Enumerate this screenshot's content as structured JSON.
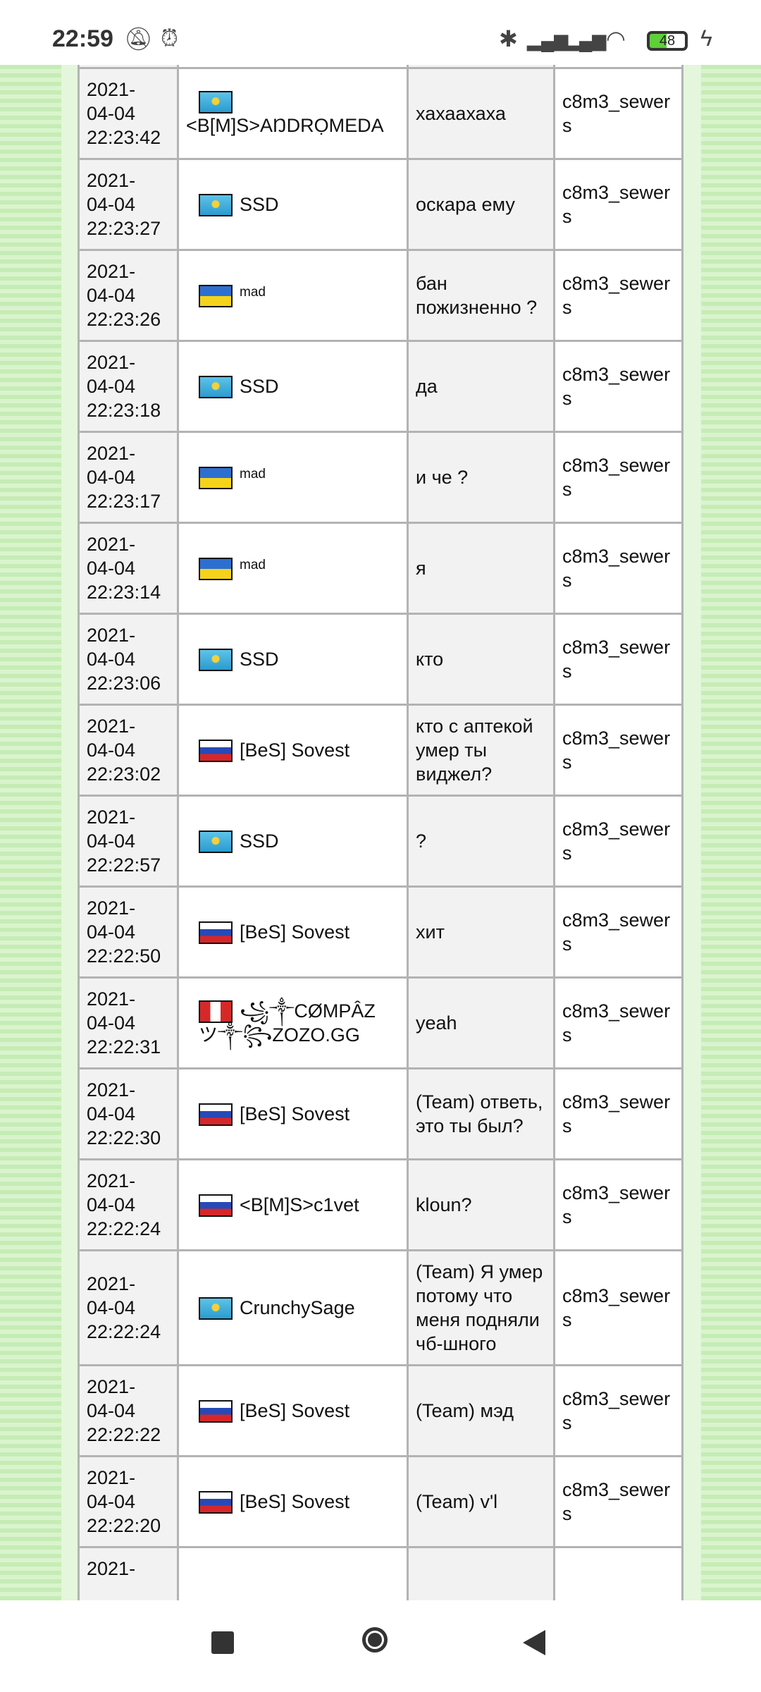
{
  "status_bar": {
    "time": "22:59",
    "battery": "48",
    "icons": [
      "bell-off-icon",
      "alarm-icon",
      "bluetooth-icon",
      "signal-icon",
      "signal-icon",
      "wifi-icon",
      "battery-icon",
      "charging-icon"
    ]
  },
  "colors": {
    "background_green": "#c6ecb5",
    "cell_gray": "#f2f2f2",
    "border": "#b3b3b3"
  },
  "rows": [
    {
      "date": "2021-",
      "day": "04-04",
      "time": "22:23:42",
      "flag": "kz",
      "name": "<B[M]S>AŊDRỌMEDA",
      "small": false,
      "message": "хахаахаха",
      "map": "c8m3_sewers",
      "wrap": true
    },
    {
      "date": "2021-",
      "day": "04-04",
      "time": "22:23:27",
      "flag": "kz",
      "name": "SSD",
      "small": false,
      "message": "оскара ему",
      "map": "c8m3_sewers"
    },
    {
      "date": "2021-",
      "day": "04-04",
      "time": "22:23:26",
      "flag": "ua",
      "name": "mad",
      "small": true,
      "message": "бан пожизненно ?",
      "map": "c8m3_sewers"
    },
    {
      "date": "2021-",
      "day": "04-04",
      "time": "22:23:18",
      "flag": "kz",
      "name": "SSD",
      "small": false,
      "message": "да",
      "map": "c8m3_sewers"
    },
    {
      "date": "2021-",
      "day": "04-04",
      "time": "22:23:17",
      "flag": "ua",
      "name": "mad",
      "small": true,
      "message": "и че ?",
      "map": "c8m3_sewers"
    },
    {
      "date": "2021-",
      "day": "04-04",
      "time": "22:23:14",
      "flag": "ua",
      "name": "mad",
      "small": true,
      "message": "я",
      "map": "c8m3_sewers"
    },
    {
      "date": "2021-",
      "day": "04-04",
      "time": "22:23:06",
      "flag": "kz",
      "name": "SSD",
      "small": false,
      "message": "кто",
      "map": "c8m3_sewers"
    },
    {
      "date": "2021-",
      "day": "04-04",
      "time": "22:23:02",
      "flag": "ru",
      "name": "[BeS] Sovest",
      "small": false,
      "message": "кто с аптекой умер ты виджел?",
      "map": "c8m3_sewers"
    },
    {
      "date": "2021-",
      "day": "04-04",
      "time": "22:22:57",
      "flag": "kz",
      "name": "SSD",
      "small": false,
      "message": "?",
      "map": "c8m3_sewers"
    },
    {
      "date": "2021-",
      "day": "04-04",
      "time": "22:22:50",
      "flag": "ru",
      "name": "[BeS] Sovest",
      "small": false,
      "message": "хит",
      "map": "c8m3_sewers"
    },
    {
      "date": "2021-",
      "day": "04-04",
      "time": "22:22:31",
      "flag": "pe",
      "name": "꧁༒CØMPÂZ ツ༒꧂ZOZO.GG",
      "small": false,
      "message": "yeah",
      "map": "c8m3_sewers"
    },
    {
      "date": "2021-",
      "day": "04-04",
      "time": "22:22:30",
      "flag": "ru",
      "name": "[BeS] Sovest",
      "small": false,
      "message": "(Team) ответь, это ты был?",
      "map": "c8m3_sewers"
    },
    {
      "date": "2021-",
      "day": "04-04",
      "time": "22:22:24",
      "flag": "ru",
      "name": "<B[M]S>c1vet",
      "small": false,
      "message": "kloun?",
      "map": "c8m3_sewers"
    },
    {
      "date": "2021-",
      "day": "04-04",
      "time": "22:22:24",
      "flag": "kz",
      "name": "CrunchySage",
      "small": false,
      "message": "(Team) Я умер потому что меня подняли чб-шного",
      "map": "c8m3_sewers"
    },
    {
      "date": "2021-",
      "day": "04-04",
      "time": "22:22:22",
      "flag": "ru",
      "name": "[BeS] Sovest",
      "small": false,
      "message": "(Team) мэд",
      "map": "c8m3_sewers"
    },
    {
      "date": "2021-",
      "day": "04-04",
      "time": "22:22:20",
      "flag": "ru",
      "name": "[BeS] Sovest",
      "small": false,
      "message": "(Team) v'l",
      "map": "c8m3_sewers"
    },
    {
      "date": "2021-",
      "day": "",
      "time": "",
      "flag": "",
      "name": "",
      "small": false,
      "message": "",
      "map": ""
    }
  ]
}
